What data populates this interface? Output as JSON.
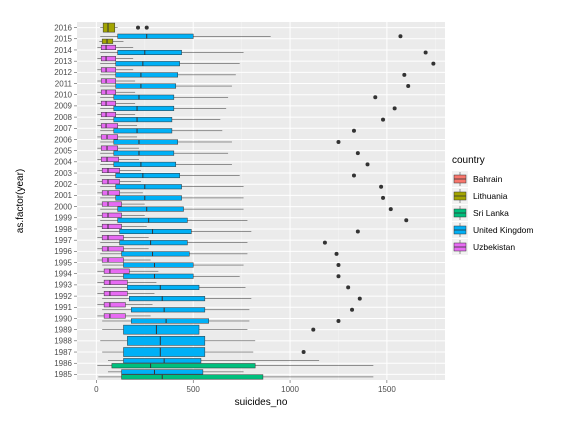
{
  "chart_data": {
    "type": "boxplot",
    "orientation": "horizontal",
    "xlabel": "suicides_no",
    "ylabel": "as.factor(year)",
    "xlim": [
      -100,
      1800
    ],
    "x_ticks": [
      0,
      500,
      1000,
      1500
    ],
    "grid": true,
    "background": "#ebebeb",
    "legend": {
      "title": "country",
      "position": "right"
    },
    "categories": [
      "1985",
      "1986",
      "1987",
      "1988",
      "1989",
      "1990",
      "1991",
      "1992",
      "1993",
      "1994",
      "1995",
      "1996",
      "1997",
      "1998",
      "1999",
      "2000",
      "2001",
      "2002",
      "2003",
      "2004",
      "2005",
      "2006",
      "2007",
      "2008",
      "2009",
      "2010",
      "2011",
      "2012",
      "2013",
      "2014",
      "2015",
      "2016"
    ],
    "series": [
      {
        "name": "Bahrain",
        "color": "#F8766D",
        "boxes": [
          null,
          null,
          null,
          null,
          null,
          null,
          null,
          null,
          null,
          null,
          null,
          null,
          null,
          null,
          null,
          null,
          null,
          null,
          null,
          null,
          null,
          null,
          null,
          null,
          null,
          null,
          null,
          null,
          null,
          null,
          null,
          null
        ]
      },
      {
        "name": "Lithuania",
        "color": "#A3A500",
        "boxes": [
          null,
          null,
          null,
          null,
          null,
          null,
          null,
          null,
          null,
          null,
          null,
          null,
          null,
          null,
          null,
          null,
          null,
          null,
          null,
          null,
          null,
          null,
          null,
          null,
          null,
          null,
          null,
          null,
          null,
          null,
          {
            "min": 15,
            "q1": 30,
            "median": 55,
            "q3": 85,
            "max": 140,
            "outliers": []
          },
          {
            "min": 20,
            "q1": 35,
            "median": 60,
            "q3": 95,
            "max": 110,
            "outliers": [
              215,
              260
            ]
          }
        ]
      },
      {
        "name": "Sri Lanka",
        "color": "#00BF7D",
        "boxes": [
          {
            "min": 10,
            "q1": 130,
            "median": 340,
            "q3": 860,
            "max": 1430,
            "outliers": []
          },
          {
            "min": 5,
            "q1": 80,
            "median": 280,
            "q3": 820,
            "max": 1430,
            "outliers": []
          },
          null,
          null,
          null,
          null,
          null,
          null,
          null,
          null,
          null,
          null,
          null,
          null,
          null,
          null,
          null,
          null,
          null,
          null,
          null,
          null,
          null,
          null,
          null,
          null,
          null,
          null,
          null,
          null,
          null,
          null
        ]
      },
      {
        "name": "United Kingdom",
        "color": "#00B0F6",
        "boxes": [
          {
            "min": 60,
            "q1": 130,
            "median": 300,
            "q3": 550,
            "max": 760,
            "outliers": []
          },
          {
            "min": 60,
            "q1": 140,
            "median": 350,
            "q3": 540,
            "max": 1150,
            "outliers": []
          },
          {
            "min": 30,
            "q1": 140,
            "median": 330,
            "q3": 560,
            "max": 810,
            "outliers": [
              1070
            ]
          },
          {
            "min": 20,
            "q1": 160,
            "median": 330,
            "q3": 560,
            "max": 820,
            "outliers": []
          },
          {
            "min": 30,
            "q1": 140,
            "median": 310,
            "q3": 530,
            "max": 780,
            "outliers": [
              1120
            ]
          },
          {
            "min": 30,
            "q1": 180,
            "median": 360,
            "q3": 580,
            "max": 790,
            "outliers": [
              1250
            ]
          },
          {
            "min": 30,
            "q1": 180,
            "median": 350,
            "q3": 560,
            "max": 790,
            "outliers": [
              1320
            ]
          },
          {
            "min": 30,
            "q1": 170,
            "median": 340,
            "q3": 560,
            "max": 800,
            "outliers": [
              1360
            ]
          },
          {
            "min": 30,
            "q1": 160,
            "median": 330,
            "q3": 530,
            "max": 770,
            "outliers": [
              1300
            ]
          },
          {
            "min": 30,
            "q1": 140,
            "median": 300,
            "q3": 500,
            "max": 740,
            "outliers": [
              1250
            ]
          },
          {
            "min": 30,
            "q1": 140,
            "median": 300,
            "q3": 500,
            "max": 760,
            "outliers": [
              1250
            ]
          },
          {
            "min": 20,
            "q1": 130,
            "median": 290,
            "q3": 480,
            "max": 780,
            "outliers": [
              1240
            ]
          },
          {
            "min": 20,
            "q1": 120,
            "median": 280,
            "q3": 470,
            "max": 780,
            "outliers": [
              1180
            ]
          },
          {
            "min": 20,
            "q1": 120,
            "median": 290,
            "q3": 490,
            "max": 800,
            "outliers": [
              1350
            ]
          },
          {
            "min": 20,
            "q1": 110,
            "median": 270,
            "q3": 470,
            "max": 780,
            "outliers": [
              1600
            ]
          },
          {
            "min": 20,
            "q1": 110,
            "median": 260,
            "q3": 450,
            "max": 760,
            "outliers": [
              1520
            ]
          },
          {
            "min": 20,
            "q1": 100,
            "median": 250,
            "q3": 440,
            "max": 760,
            "outliers": [
              1480
            ]
          },
          {
            "min": 20,
            "q1": 100,
            "median": 250,
            "q3": 440,
            "max": 760,
            "outliers": [
              1470
            ]
          },
          {
            "min": 20,
            "q1": 100,
            "median": 240,
            "q3": 430,
            "max": 740,
            "outliers": [
              1330
            ]
          },
          {
            "min": 20,
            "q1": 90,
            "median": 230,
            "q3": 410,
            "max": 700,
            "outliers": [
              1400
            ]
          },
          {
            "min": 20,
            "q1": 90,
            "median": 220,
            "q3": 400,
            "max": 680,
            "outliers": [
              1350
            ]
          },
          {
            "min": 20,
            "q1": 90,
            "median": 220,
            "q3": 420,
            "max": 700,
            "outliers": [
              1250
            ]
          },
          {
            "min": 20,
            "q1": 90,
            "median": 210,
            "q3": 390,
            "max": 650,
            "outliers": [
              1330
            ]
          },
          {
            "min": 20,
            "q1": 90,
            "median": 210,
            "q3": 390,
            "max": 640,
            "outliers": [
              1480
            ]
          },
          {
            "min": 20,
            "q1": 90,
            "median": 210,
            "q3": 400,
            "max": 670,
            "outliers": [
              1540
            ]
          },
          {
            "min": 20,
            "q1": 90,
            "median": 220,
            "q3": 400,
            "max": 680,
            "outliers": [
              1440
            ]
          },
          {
            "min": 20,
            "q1": 100,
            "median": 230,
            "q3": 410,
            "max": 700,
            "outliers": [
              1610
            ]
          },
          {
            "min": 20,
            "q1": 100,
            "median": 230,
            "q3": 420,
            "max": 720,
            "outliers": [
              1590
            ]
          },
          {
            "min": 20,
            "q1": 100,
            "median": 240,
            "q3": 430,
            "max": 740,
            "outliers": [
              1740
            ]
          },
          {
            "min": 20,
            "q1": 110,
            "median": 250,
            "q3": 440,
            "max": 760,
            "outliers": [
              1700
            ]
          },
          {
            "min": 20,
            "q1": 110,
            "median": 260,
            "q3": 500,
            "max": 900,
            "outliers": [
              1570
            ]
          },
          null
        ]
      },
      {
        "name": "Uzbekistan",
        "color": "#E76BF3",
        "boxes": [
          null,
          null,
          null,
          null,
          null,
          {
            "min": 5,
            "q1": 40,
            "median": 70,
            "q3": 150,
            "max": 280,
            "outliers": []
          },
          {
            "min": 5,
            "q1": 40,
            "median": 70,
            "q3": 150,
            "max": 290,
            "outliers": []
          },
          {
            "min": 5,
            "q1": 40,
            "median": 70,
            "q3": 160,
            "max": 300,
            "outliers": []
          },
          {
            "min": 5,
            "q1": 40,
            "median": 70,
            "q3": 160,
            "max": 310,
            "outliers": []
          },
          {
            "min": 5,
            "q1": 40,
            "median": 70,
            "q3": 170,
            "max": 320,
            "outliers": []
          },
          {
            "min": 5,
            "q1": 30,
            "median": 60,
            "q3": 140,
            "max": 280,
            "outliers": []
          },
          {
            "min": 5,
            "q1": 30,
            "median": 60,
            "q3": 140,
            "max": 270,
            "outliers": []
          },
          {
            "min": 5,
            "q1": 30,
            "median": 60,
            "q3": 140,
            "max": 270,
            "outliers": []
          },
          {
            "min": 5,
            "q1": 30,
            "median": 60,
            "q3": 130,
            "max": 260,
            "outliers": []
          },
          {
            "min": 5,
            "q1": 30,
            "median": 60,
            "q3": 130,
            "max": 250,
            "outliers": []
          },
          {
            "min": 5,
            "q1": 30,
            "median": 60,
            "q3": 130,
            "max": 250,
            "outliers": []
          },
          {
            "min": 5,
            "q1": 30,
            "median": 60,
            "q3": 120,
            "max": 240,
            "outliers": []
          },
          {
            "min": 5,
            "q1": 30,
            "median": 60,
            "q3": 120,
            "max": 230,
            "outliers": []
          },
          {
            "min": 5,
            "q1": 30,
            "median": 60,
            "q3": 120,
            "max": 230,
            "outliers": []
          },
          {
            "min": 5,
            "q1": 25,
            "median": 55,
            "q3": 115,
            "max": 220,
            "outliers": []
          },
          {
            "min": 5,
            "q1": 25,
            "median": 55,
            "q3": 110,
            "max": 220,
            "outliers": []
          },
          {
            "min": 5,
            "q1": 25,
            "median": 55,
            "q3": 110,
            "max": 210,
            "outliers": []
          },
          {
            "min": 5,
            "q1": 25,
            "median": 50,
            "q3": 110,
            "max": 210,
            "outliers": []
          },
          {
            "min": 5,
            "q1": 25,
            "median": 50,
            "q3": 100,
            "max": 200,
            "outliers": []
          },
          {
            "min": 5,
            "q1": 25,
            "median": 50,
            "q3": 100,
            "max": 200,
            "outliers": []
          },
          {
            "min": 5,
            "q1": 25,
            "median": 50,
            "q3": 100,
            "max": 200,
            "outliers": []
          },
          {
            "min": 5,
            "q1": 25,
            "median": 50,
            "q3": 100,
            "max": 200,
            "outliers": []
          },
          {
            "min": 5,
            "q1": 25,
            "median": 50,
            "q3": 100,
            "max": 190,
            "outliers": []
          },
          {
            "min": 5,
            "q1": 25,
            "median": 50,
            "q3": 100,
            "max": 190,
            "outliers": []
          },
          {
            "min": 5,
            "q1": 25,
            "median": 50,
            "q3": 100,
            "max": 190,
            "outliers": []
          },
          null,
          null
        ]
      }
    ]
  }
}
